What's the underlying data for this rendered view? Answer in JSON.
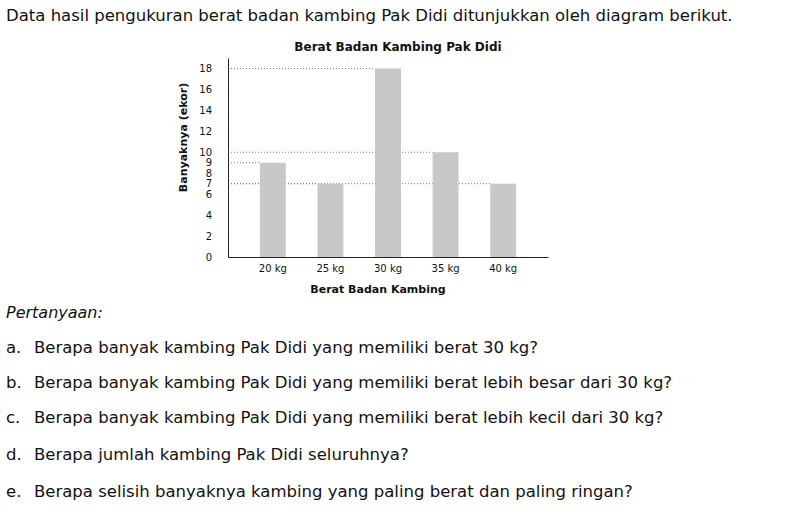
{
  "header": "Data hasil pengukuran berat badan kambing Pak Didi ditunjukkan oleh diagram berikut.",
  "chart_data": {
    "type": "bar",
    "title": "Berat Badan Kambing Pak Didi",
    "x_label": "Berat Badan Kambing",
    "y_label": "Banyaknya (ekor)",
    "categories": [
      "20 kg",
      "25 kg",
      "30 kg",
      "35 kg",
      "40 kg"
    ],
    "values": [
      9,
      7,
      18,
      10,
      7
    ],
    "color": "#c8c8c8",
    "ylim": [
      0,
      19
    ],
    "yticks": [
      0,
      2,
      4,
      6,
      7,
      8,
      9,
      10,
      12,
      14,
      16,
      18
    ],
    "grid": false
  },
  "questions": {
    "heading": "Pertanyaan:",
    "items": [
      {
        "label": "a.",
        "text": "Berapa banyak kambing Pak Didi yang memiliki berat 30 kg?"
      },
      {
        "label": "b.",
        "text": "Berapa banyak kambing Pak Didi yang memiliki berat lebih besar dari 30 kg?"
      },
      {
        "label": "c.",
        "text": "Berapa banyak kambing Pak Didi yang memiliki berat lebih kecil dari 30 kg?"
      },
      {
        "label": "d.",
        "text": "Berapa jumlah kambing Pak Didi seluruhnya?"
      },
      {
        "label": "e.",
        "text": "Berapa selisih banyaknya kambing yang paling berat dan paling ringan?"
      }
    ]
  }
}
